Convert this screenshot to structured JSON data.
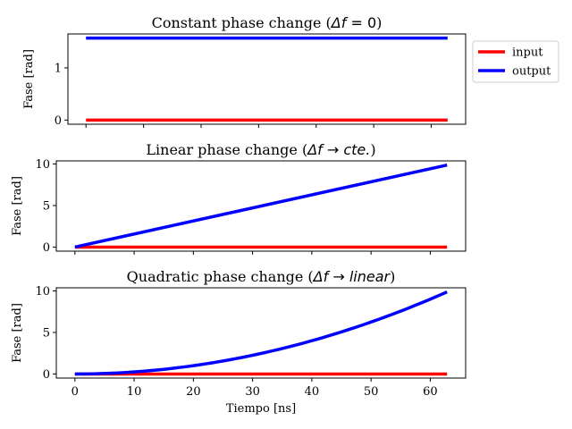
{
  "chart_data": [
    {
      "type": "line",
      "title_prefix": "Constant phase change (",
      "title_math": "Δf",
      "title_math_op": " = 0",
      "title_suffix": ")",
      "xlabel": "",
      "ylabel": "Fase [rad]",
      "xlim": [
        -3.14,
        65.97
      ],
      "ylim": [
        -0.08,
        1.65
      ],
      "yticks": [
        0,
        1
      ],
      "xticks": [
        0,
        10,
        20,
        30,
        40,
        50,
        60
      ],
      "show_xticklabels": false,
      "grid": false,
      "legend_placement": "outside-right",
      "series": [
        {
          "name": "input",
          "color": "#ff0000",
          "kind": "constant",
          "value": 0
        },
        {
          "name": "output",
          "color": "#0000ff",
          "kind": "constant",
          "value": 1.5708
        }
      ]
    },
    {
      "type": "line",
      "title_prefix": "Linear phase change  (",
      "title_math": "Δf",
      "title_math_op": " → ",
      "title_math2": "cte.",
      "title_suffix": ")",
      "xlabel": "",
      "ylabel": "Fase [rad]",
      "xlim": [
        -3.14,
        65.97
      ],
      "ylim": [
        -0.49,
        10.37
      ],
      "yticks": [
        0,
        5,
        10
      ],
      "xticks": [
        0,
        10,
        20,
        30,
        40,
        50,
        60
      ],
      "show_xticklabels": false,
      "grid": false,
      "series": [
        {
          "name": "input",
          "color": "#ff0000",
          "kind": "constant",
          "value": 0
        },
        {
          "name": "output",
          "color": "#0000ff",
          "kind": "linear",
          "x_end": 62.83,
          "y_end": 9.87
        }
      ]
    },
    {
      "type": "line",
      "title_prefix": "Quadratic phase change (",
      "title_math": "Δf",
      "title_math_op": " → ",
      "title_math2": "linear",
      "title_suffix": ")",
      "xlabel": "Tiempo [ns]",
      "ylabel": "Fase [rad]",
      "xlim": [
        -3.14,
        65.97
      ],
      "ylim": [
        -0.49,
        10.37
      ],
      "yticks": [
        0,
        5,
        10
      ],
      "xticks": [
        0,
        10,
        20,
        30,
        40,
        50,
        60
      ],
      "show_xticklabels": true,
      "grid": false,
      "series": [
        {
          "name": "input",
          "color": "#ff0000",
          "kind": "constant",
          "value": 0
        },
        {
          "name": "output",
          "color": "#0000ff",
          "kind": "quadratic",
          "x_end": 62.83,
          "y_end": 9.87
        }
      ]
    }
  ]
}
